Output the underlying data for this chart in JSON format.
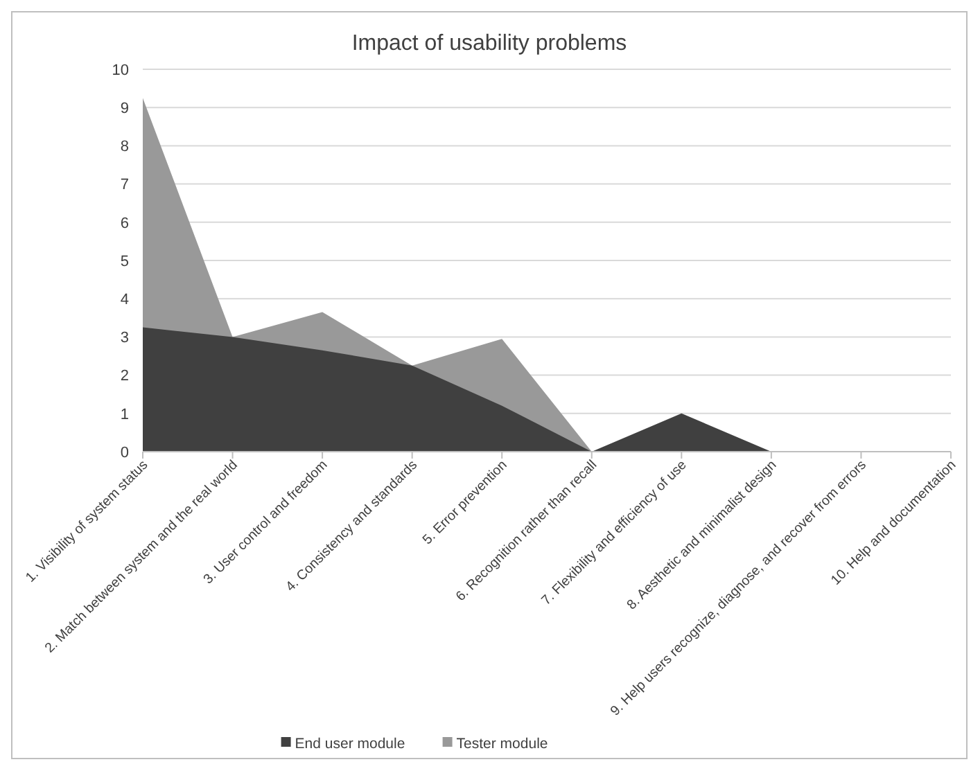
{
  "chart_data": {
    "type": "area",
    "title": "Impact of usability problems",
    "categories": [
      "1. Visibility of system status",
      "2. Match between system and the real world",
      "3. User control and freedom",
      "4. Consistency and standards",
      "5. Error prevention",
      "6. Recognition rather than recall",
      "7. Flexibility and efficiency of use",
      "8. Aesthetic and minimalist design",
      "9. Help users recognize, diagnose, and recover from errors",
      "10. Help and documentation"
    ],
    "series": [
      {
        "name": "End user module",
        "color": "#404040",
        "values": [
          3.25,
          3.0,
          2.65,
          2.25,
          1.2,
          0,
          1.0,
          0,
          0,
          0
        ]
      },
      {
        "name": "Tester module",
        "color": "#999999",
        "values": [
          9.25,
          3.0,
          3.65,
          2.25,
          2.95,
          0,
          0,
          0,
          0,
          0
        ]
      }
    ],
    "ylim": [
      0,
      10
    ],
    "yticks": [
      0,
      1,
      2,
      3,
      4,
      5,
      6,
      7,
      8,
      9,
      10
    ],
    "grid": "y",
    "legend": "bottom"
  }
}
